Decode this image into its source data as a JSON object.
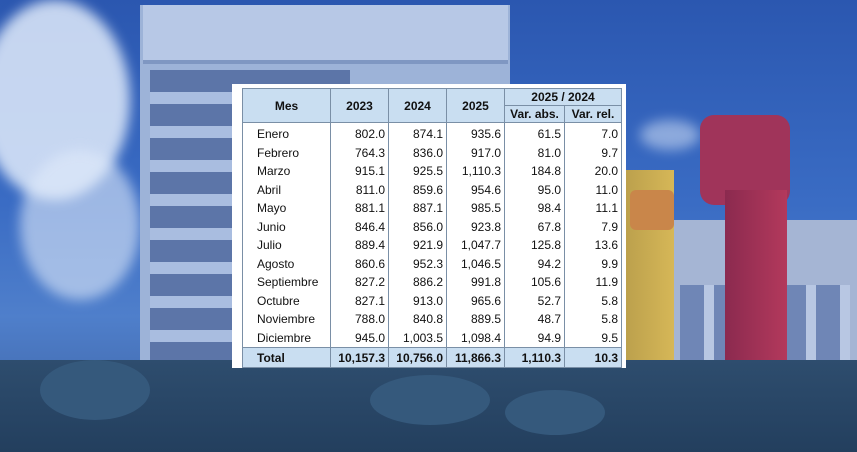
{
  "table": {
    "header": {
      "mes": "Mes",
      "y2023": "2023",
      "y2024": "2024",
      "y2025": "2025",
      "comparison": "2025 / 2024",
      "var_abs": "Var. abs.",
      "var_rel": "Var. rel."
    },
    "rows": [
      {
        "mes": "Enero",
        "y2023": "802.0",
        "y2024": "874.1",
        "y2025": "935.6",
        "var_abs": "61.5",
        "var_rel": "7.0"
      },
      {
        "mes": "Febrero",
        "y2023": "764.3",
        "y2024": "836.0",
        "y2025": "917.0",
        "var_abs": "81.0",
        "var_rel": "9.7"
      },
      {
        "mes": "Marzo",
        "y2023": "915.1",
        "y2024": "925.5",
        "y2025": "1,110.3",
        "var_abs": "184.8",
        "var_rel": "20.0"
      },
      {
        "mes": "Abril",
        "y2023": "811.0",
        "y2024": "859.6",
        "y2025": "954.6",
        "var_abs": "95.0",
        "var_rel": "11.0"
      },
      {
        "mes": "Mayo",
        "y2023": "881.1",
        "y2024": "887.1",
        "y2025": "985.5",
        "var_abs": "98.4",
        "var_rel": "11.1"
      },
      {
        "mes": "Junio",
        "y2023": "846.4",
        "y2024": "856.0",
        "y2025": "923.8",
        "var_abs": "67.8",
        "var_rel": "7.9"
      },
      {
        "mes": "Julio",
        "y2023": "889.4",
        "y2024": "921.9",
        "y2025": "1,047.7",
        "var_abs": "125.8",
        "var_rel": "13.6"
      },
      {
        "mes": "Agosto",
        "y2023": "860.6",
        "y2024": "952.3",
        "y2025": "1,046.5",
        "var_abs": "94.2",
        "var_rel": "9.9"
      },
      {
        "mes": "Septiembre",
        "y2023": "827.2",
        "y2024": "886.2",
        "y2025": "991.8",
        "var_abs": "105.6",
        "var_rel": "11.9"
      },
      {
        "mes": "Octubre",
        "y2023": "827.1",
        "y2024": "913.0",
        "y2025": "965.6",
        "var_abs": "52.7",
        "var_rel": "5.8"
      },
      {
        "mes": "Noviembre",
        "y2023": "788.0",
        "y2024": "840.8",
        "y2025": "889.5",
        "var_abs": "48.7",
        "var_rel": "5.8"
      },
      {
        "mes": "Diciembre",
        "y2023": "945.0",
        "y2024": "1,003.5",
        "y2025": "1,098.4",
        "var_abs": "94.9",
        "var_rel": "9.5"
      }
    ],
    "total": {
      "mes": "Total",
      "y2023": "10,157.3",
      "y2024": "10,756.0",
      "y2025": "11,866.3",
      "var_abs": "1,110.3",
      "var_rel": "10.3"
    }
  },
  "colors": {
    "header_fill": "#c9def1",
    "background_tint": "#2f5aa8"
  }
}
